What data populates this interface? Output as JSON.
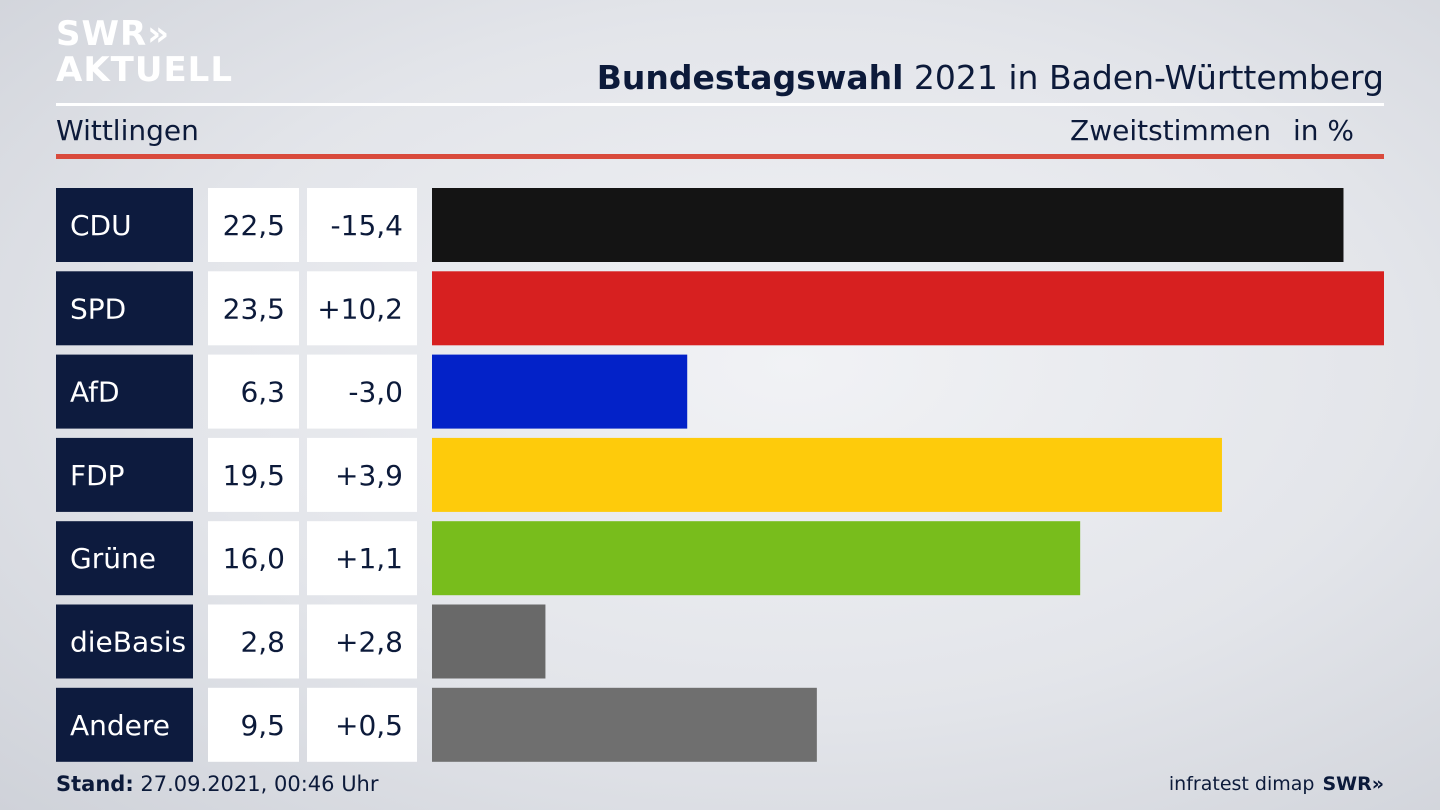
{
  "logo": {
    "line1": "SWR»",
    "line2": "AKTUELL"
  },
  "header": {
    "title_bold": "Bundestagswahl",
    "title_rest": "2021 in Baden-Württemberg",
    "subtitle": "Wittlingen",
    "measure": "Zweitstimmen",
    "unit": "in %"
  },
  "chart_data": {
    "type": "bar",
    "orientation": "horizontal",
    "categories": [
      "CDU",
      "SPD",
      "AfD",
      "FDP",
      "Grüne",
      "dieBasis",
      "Andere"
    ],
    "values": [
      22.5,
      23.5,
      6.3,
      19.5,
      16.0,
      2.8,
      9.5
    ],
    "value_labels": [
      "22,5",
      "23,5",
      "6,3",
      "19,5",
      "16,0",
      "2,8",
      "9,5"
    ],
    "changes": [
      "-15,4",
      "+10,2",
      "-3,0",
      "+3,9",
      "+1,1",
      "+2,8",
      "+0,5"
    ],
    "colors": [
      "#141414",
      "#d72020",
      "#0322c8",
      "#fecb0b",
      "#78bd1c",
      "#696969",
      "#6f6f6f"
    ],
    "xlim": [
      0,
      23.5
    ]
  },
  "footer": {
    "stand_label": "Stand:",
    "stand_value": "27.09.2021, 00:46 Uhr",
    "source": "infratest dimap",
    "brand": "SWR»"
  }
}
